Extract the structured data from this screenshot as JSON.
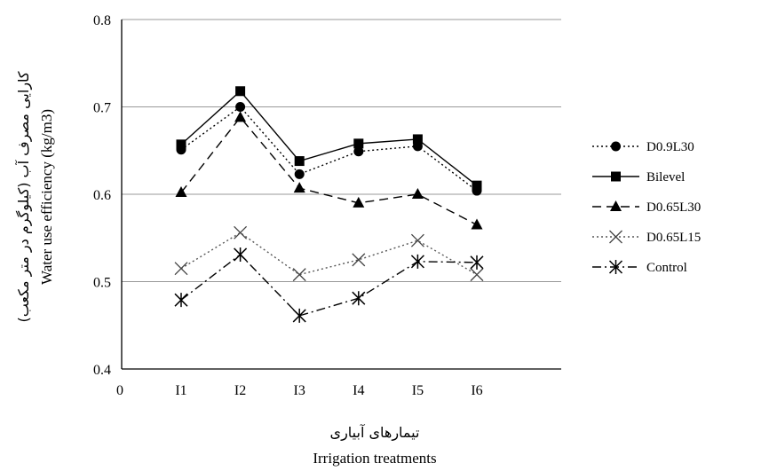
{
  "chart_data": {
    "type": "line",
    "xlabel_fa": "تیمارهای آبیاری",
    "xlabel": "Irrigation treatments",
    "ylabel_fa": "کارایی مصرف آب (کیلوگرم در متر مکعب)",
    "ylabel": "Water use efficiency  (kg/m3)",
    "x_origin_label": "0",
    "categories": [
      "I1",
      "I2",
      "I3",
      "I4",
      "I5",
      "I6"
    ],
    "ylim": [
      0.4,
      0.8
    ],
    "yticks": [
      "0.4",
      "0.5",
      "0.6",
      "0.7",
      "0.8"
    ],
    "grid": true,
    "legend_position": "right",
    "series": [
      {
        "name": "D0.9L30",
        "marker": "circle",
        "line": "dotted",
        "values": [
          0.651,
          0.7,
          0.623,
          0.649,
          0.655,
          0.604
        ]
      },
      {
        "name": "Bilevel",
        "marker": "square",
        "line": "solid",
        "values": [
          0.657,
          0.718,
          0.638,
          0.658,
          0.663,
          0.61
        ]
      },
      {
        "name": "D0.65L30",
        "marker": "triangle",
        "line": "dashed",
        "values": [
          0.602,
          0.688,
          0.607,
          0.59,
          0.6,
          0.565
        ]
      },
      {
        "name": "D0.65L15",
        "marker": "x",
        "line": "dotted",
        "values": [
          0.515,
          0.556,
          0.508,
          0.525,
          0.547,
          0.508
        ]
      },
      {
        "name": "Control",
        "marker": "asterisk",
        "line": "dashdot",
        "values": [
          0.479,
          0.531,
          0.461,
          0.481,
          0.523,
          0.522
        ]
      }
    ]
  }
}
